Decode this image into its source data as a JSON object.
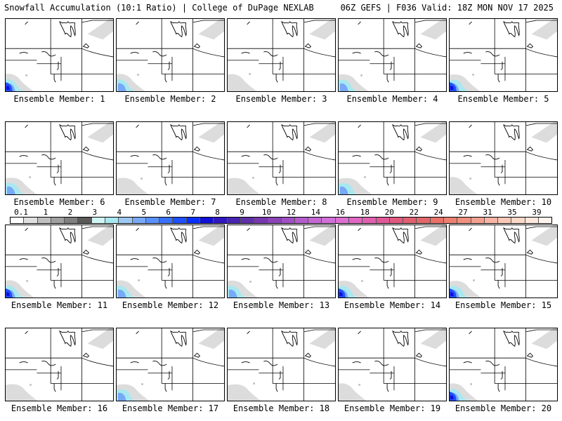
{
  "header": {
    "title": "Snowfall Accumulation (10:1 Ratio) | College of DuPage NEXLAB",
    "run_info": "06Z GEFS | F036 Valid: 18Z MON NOV 17 2025"
  },
  "colorbar": {
    "labels": [
      "0.1",
      "1",
      "2",
      "3",
      "4",
      "5",
      "6",
      "7",
      "8",
      "9",
      "10",
      "12",
      "14",
      "16",
      "18",
      "20",
      "22",
      "24",
      "27",
      "31",
      "35",
      "39"
    ],
    "colors": [
      "#ffffff",
      "#e0e0e0",
      "#c0c0c0",
      "#a0a0a0",
      "#808080",
      "#5a5a5a",
      "#d0f5f5",
      "#a8e8f0",
      "#9cc8f4",
      "#78a8f8",
      "#5890fc",
      "#3870fc",
      "#2050fc",
      "#0830fc",
      "#1010d8",
      "#3018c0",
      "#4824b0",
      "#6030a8",
      "#7838b0",
      "#8c44b8",
      "#a050c4",
      "#b45ccc",
      "#c468d4",
      "#d070d8",
      "#dc70d0",
      "#e068c4",
      "#e060b0",
      "#e05898",
      "#e05880",
      "#e06070",
      "#e06868",
      "#e87068",
      "#ec8070",
      "#f09080",
      "#f4a090",
      "#f8b4a4",
      "#fac8b8",
      "#fcd8c8",
      "#fee8dc",
      "#fff4ec"
    ]
  },
  "members": [
    {
      "label": "Ensemble Member: 1",
      "snow": "heavy"
    },
    {
      "label": "Ensemble Member: 2",
      "snow": "medium"
    },
    {
      "label": "Ensemble Member: 3",
      "snow": "light"
    },
    {
      "label": "Ensemble Member: 4",
      "snow": "medium"
    },
    {
      "label": "Ensemble Member: 5",
      "snow": "heavy"
    },
    {
      "label": "Ensemble Member: 6",
      "snow": "medium"
    },
    {
      "label": "Ensemble Member: 7",
      "snow": "light"
    },
    {
      "label": "Ensemble Member: 8",
      "snow": "light"
    },
    {
      "label": "Ensemble Member: 9",
      "snow": "medium"
    },
    {
      "label": "Ensemble Member: 10",
      "snow": "light"
    },
    {
      "label": "Ensemble Member: 11",
      "snow": "heavy"
    },
    {
      "label": "Ensemble Member: 12",
      "snow": "medium"
    },
    {
      "label": "Ensemble Member: 13",
      "snow": "medium"
    },
    {
      "label": "Ensemble Member: 14",
      "snow": "heavy"
    },
    {
      "label": "Ensemble Member: 15",
      "snow": "heavy"
    },
    {
      "label": "Ensemble Member: 16",
      "snow": "light"
    },
    {
      "label": "Ensemble Member: 17",
      "snow": "medium"
    },
    {
      "label": "Ensemble Member: 18",
      "snow": "light"
    },
    {
      "label": "Ensemble Member: 19",
      "snow": "light"
    },
    {
      "label": "Ensemble Member: 20",
      "snow": "heavy"
    }
  ]
}
